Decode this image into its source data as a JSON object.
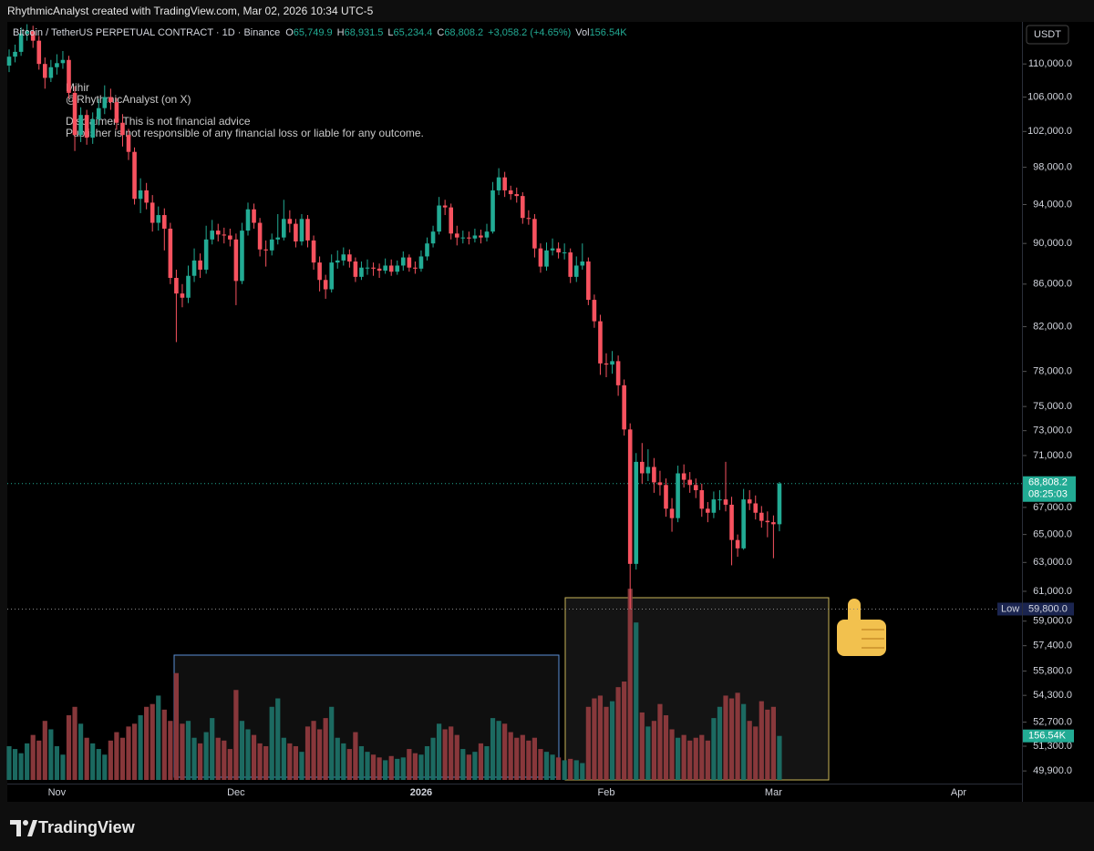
{
  "header": {
    "credit": "RhythmicAnalyst created with TradingView.com, Mar 02, 2026 10:34 UTC-5",
    "currency": "USDT"
  },
  "chart_data": {
    "type": "candlestick",
    "legend": {
      "symbol": "Bitcoin / TetherUS PERPETUAL CONTRACT · 1D · Binance",
      "fields": [
        {
          "prefix": "O",
          "text": "65,749.9"
        },
        {
          "prefix": "H",
          "text": "68,931.5"
        },
        {
          "prefix": "L",
          "text": "65,234.4"
        },
        {
          "prefix": "C",
          "text": "68,808.2"
        },
        {
          "prefix": "Vol",
          "text": "156.54K"
        }
      ],
      "change": "+3,058.2 (+4.65%)"
    },
    "annotations": [
      "Mihir",
      "@RhythmicAnalyst (on X)",
      "Disclaimer: This is not financial advice",
      "Publisher is not responsible of any financial loss or liable for any outcome."
    ],
    "categories": [
      null,
      null,
      null,
      null,
      null,
      null,
      null,
      null,
      "Nov",
      null,
      null,
      null,
      null,
      null,
      null,
      null,
      null,
      null,
      null,
      null,
      null,
      null,
      null,
      null,
      null,
      null,
      null,
      null,
      null,
      null,
      null,
      null,
      null,
      null,
      null,
      null,
      null,
      null,
      "Dec",
      null,
      null,
      null,
      null,
      null,
      null,
      null,
      null,
      null,
      null,
      null,
      null,
      null,
      null,
      null,
      null,
      null,
      null,
      null,
      null,
      null,
      null,
      null,
      null,
      null,
      null,
      null,
      null,
      null,
      null,
      "2026",
      null,
      null,
      null,
      null,
      null,
      null,
      null,
      null,
      null,
      null,
      null,
      null,
      null,
      null,
      null,
      null,
      null,
      null,
      null,
      null,
      null,
      null,
      null,
      null,
      null,
      null,
      null,
      null,
      null,
      null,
      "Feb",
      null,
      null,
      null,
      null,
      null,
      null,
      null,
      null,
      null,
      null,
      null,
      null,
      null,
      null,
      null,
      null,
      null,
      null,
      null,
      null,
      null,
      null,
      null,
      null,
      null,
      null,
      null,
      "Mar",
      null,
      null,
      null,
      null,
      null,
      null,
      null,
      null,
      null,
      null,
      null,
      null,
      null,
      null,
      null,
      null,
      null,
      null,
      null,
      null,
      null,
      null,
      null,
      null,
      null,
      null,
      null,
      null,
      null,
      null,
      "Apr"
    ],
    "open": [
      109800,
      110900,
      111500,
      113800,
      114100,
      112900,
      110000,
      108300,
      109600,
      110100,
      110500,
      106500,
      101600,
      103900,
      101300,
      103400,
      104700,
      106000,
      105400,
      103000,
      101600,
      99700,
      94600,
      95500,
      94200,
      92100,
      92900,
      91500,
      86600,
      85100,
      84700,
      86800,
      88300,
      87400,
      90400,
      91300,
      90900,
      90800,
      90400,
      86300,
      91300,
      93500,
      92100,
      89400,
      89300,
      90400,
      90600,
      92500,
      92000,
      90200,
      92500,
      90300,
      88100,
      86400,
      85500,
      88100,
      88300,
      88900,
      88200,
      86700,
      87600,
      87600,
      87500,
      87300,
      87800,
      87200,
      87800,
      88600,
      87600,
      87500,
      88700,
      90000,
      91200,
      93900,
      93700,
      91000,
      90600,
      90600,
      90500,
      90800,
      90600,
      91200,
      95500,
      96900,
      95500,
      95100,
      94900,
      92600,
      92500,
      89500,
      87700,
      89300,
      89500,
      89100,
      89100,
      86700,
      87800,
      88200,
      84500,
      82500,
      78700,
      78600,
      78900,
      76800,
      73100,
      62900,
      70500,
      69600,
      70100,
      68900,
      68700,
      66900,
      66200,
      69600,
      69100,
      68700,
      68300,
      66900,
      66600,
      67600,
      67600,
      67200,
      64600,
      64000,
      67600,
      67300,
      66600,
      66000,
      65900,
      65749.9,
      null,
      null,
      null,
      null,
      null,
      null,
      null,
      null,
      null,
      null,
      null,
      null,
      null,
      null,
      null,
      null,
      null,
      null,
      null,
      null,
      null,
      null,
      null,
      null,
      null,
      null,
      null,
      null,
      null,
      null
    ],
    "high": [
      111800,
      112400,
      114600,
      115000,
      114800,
      113500,
      110800,
      110500,
      111200,
      111600,
      111000,
      107300,
      104800,
      104500,
      104200,
      105800,
      107400,
      107000,
      105900,
      104000,
      102300,
      100200,
      96800,
      96300,
      95000,
      93800,
      93600,
      92100,
      87400,
      86000,
      87800,
      89500,
      89000,
      91800,
      92400,
      92000,
      91600,
      91500,
      91000,
      92100,
      94200,
      94100,
      92600,
      90300,
      91000,
      93000,
      94500,
      93400,
      92500,
      93000,
      92900,
      90800,
      88700,
      86900,
      88900,
      89300,
      89600,
      89400,
      88600,
      88200,
      88400,
      88100,
      88000,
      88500,
      88400,
      88300,
      89200,
      88900,
      88200,
      89300,
      90600,
      91800,
      94800,
      94500,
      94100,
      91800,
      91300,
      91200,
      91500,
      91400,
      92000,
      96400,
      97900,
      97500,
      96000,
      95800,
      95300,
      93400,
      93000,
      90000,
      90100,
      90500,
      90100,
      90000,
      89500,
      88700,
      90000,
      88600,
      85000,
      83100,
      79600,
      79800,
      79400,
      77300,
      73600,
      71200,
      72000,
      71500,
      70800,
      69800,
      69200,
      67700,
      70200,
      70300,
      69700,
      69200,
      68800,
      67400,
      68200,
      68300,
      70500,
      67800,
      65000,
      68400,
      68300,
      67900,
      67100,
      66700,
      66400,
      68931.5,
      null,
      null,
      null,
      null,
      null,
      null,
      null,
      null,
      null,
      null,
      null,
      null,
      null,
      null,
      null,
      null,
      null,
      null,
      null,
      null,
      null,
      null,
      null,
      null,
      null,
      null,
      null,
      null,
      null,
      null
    ],
    "low": [
      109000,
      110200,
      111000,
      112900,
      112000,
      109300,
      107000,
      107800,
      108700,
      109400,
      105800,
      99800,
      100800,
      100500,
      100600,
      102700,
      104000,
      104500,
      102200,
      100300,
      98800,
      94000,
      93100,
      93500,
      91200,
      91300,
      89300,
      86000,
      80600,
      83800,
      84200,
      86200,
      86600,
      87000,
      89900,
      90200,
      90000,
      89700,
      84000,
      86000,
      90800,
      91500,
      88700,
      87700,
      88800,
      89900,
      90300,
      91100,
      89600,
      89800,
      89600,
      87400,
      85300,
      84600,
      85200,
      87500,
      87800,
      87600,
      86200,
      86400,
      86900,
      86800,
      86600,
      87000,
      86800,
      86900,
      87300,
      87200,
      87000,
      87200,
      88300,
      89600,
      90900,
      92900,
      90400,
      89800,
      90000,
      89900,
      90100,
      90000,
      90200,
      91000,
      95000,
      94800,
      94500,
      94200,
      92000,
      91900,
      88600,
      87100,
      87300,
      88800,
      88500,
      88400,
      86100,
      86200,
      87400,
      84000,
      81900,
      77700,
      77500,
      77800,
      75900,
      72600,
      59800,
      62500,
      68800,
      69000,
      68100,
      67900,
      66300,
      65200,
      65900,
      68500,
      68100,
      67700,
      66300,
      65900,
      66200,
      66800,
      66700,
      62800,
      63400,
      63900,
      66800,
      66100,
      65500,
      64800,
      63300,
      65234.4,
      null,
      null,
      null,
      null,
      null,
      null,
      null,
      null,
      null,
      null,
      null,
      null,
      null,
      null,
      null,
      null,
      null,
      null,
      null,
      null,
      null,
      null,
      null,
      null,
      null,
      null,
      null,
      null,
      null,
      null
    ],
    "close": [
      110900,
      111500,
      113800,
      114100,
      112900,
      110000,
      108300,
      109600,
      110100,
      110500,
      106500,
      101600,
      103900,
      101300,
      103400,
      104700,
      106000,
      105400,
      103000,
      101600,
      99700,
      94600,
      95500,
      94200,
      92100,
      92900,
      91500,
      86600,
      85100,
      84700,
      86800,
      88300,
      87400,
      90400,
      91300,
      90900,
      90800,
      90400,
      86300,
      91300,
      93500,
      92100,
      89400,
      89300,
      90400,
      90600,
      92500,
      92000,
      90200,
      92500,
      90300,
      88100,
      86400,
      85500,
      88100,
      88300,
      88900,
      88200,
      86700,
      87600,
      87600,
      87500,
      87300,
      87800,
      87200,
      87800,
      88600,
      87600,
      87500,
      88700,
      90000,
      91200,
      93900,
      93700,
      91000,
      90600,
      90600,
      90500,
      90800,
      90600,
      91200,
      95500,
      96900,
      95500,
      95100,
      94900,
      92600,
      92500,
      89500,
      87700,
      89300,
      89500,
      89100,
      89100,
      86700,
      87800,
      88200,
      84500,
      82500,
      78700,
      78600,
      78900,
      76800,
      73100,
      62900,
      70500,
      69600,
      70100,
      68900,
      68700,
      66900,
      66200,
      69600,
      69100,
      68700,
      68300,
      66900,
      66600,
      67600,
      67600,
      67200,
      64600,
      64000,
      67600,
      67300,
      66600,
      66000,
      65900,
      65749.9,
      68808.2,
      null,
      null,
      null,
      null,
      null,
      null,
      null,
      null,
      null,
      null,
      null,
      null,
      null,
      null,
      null,
      null,
      null,
      null,
      null,
      null,
      null,
      null,
      null,
      null,
      null,
      null,
      null,
      null,
      null,
      null
    ],
    "volume": [
      120,
      110,
      95,
      130,
      160,
      140,
      210,
      180,
      120,
      90,
      230,
      260,
      200,
      150,
      130,
      110,
      90,
      140,
      170,
      150,
      190,
      200,
      230,
      260,
      270,
      300,
      250,
      210,
      380,
      200,
      210,
      150,
      130,
      170,
      220,
      150,
      140,
      110,
      320,
      210,
      180,
      160,
      130,
      120,
      260,
      290,
      150,
      130,
      120,
      100,
      190,
      210,
      180,
      220,
      260,
      150,
      130,
      110,
      170,
      120,
      100,
      90,
      80,
      70,
      85,
      75,
      80,
      110,
      95,
      90,
      120,
      150,
      200,
      180,
      190,
      160,
      110,
      90,
      100,
      130,
      120,
      220,
      210,
      200,
      170,
      150,
      160,
      140,
      150,
      110,
      100,
      90,
      80,
      70,
      75,
      70,
      60,
      260,
      290,
      300,
      260,
      280,
      330,
      350,
      680,
      560,
      240,
      190,
      210,
      270,
      230,
      180,
      150,
      160,
      140,
      150,
      160,
      140,
      220,
      260,
      300,
      290,
      310,
      270,
      210,
      190,
      280,
      250,
      260,
      156.54,
      null,
      null,
      null,
      null,
      null,
      null,
      null,
      null,
      null,
      null,
      null,
      null,
      null,
      null,
      null,
      null,
      null,
      null,
      null,
      null,
      null,
      null,
      null,
      null,
      null,
      null,
      null,
      null,
      null,
      null
    ],
    "up_color": "#22ab94",
    "down_color": "#f7525f",
    "volume_up_color": "#1d6f66",
    "volume_down_color": "#8f3a3e",
    "log_scale": true,
    "ylim": [
      49200,
      115300
    ],
    "yticks": [
      {
        "value": 110000,
        "label": "110,000.0"
      },
      {
        "value": 106000,
        "label": "106,000.0"
      },
      {
        "value": 102000,
        "label": "102,000.0"
      },
      {
        "value": 98000,
        "label": "98,000.0"
      },
      {
        "value": 94000,
        "label": "94,000.0"
      },
      {
        "value": 90000,
        "label": "90,000.0"
      },
      {
        "value": 86000,
        "label": "86,000.0"
      },
      {
        "value": 82000,
        "label": "82,000.0"
      },
      {
        "value": 78000,
        "label": "78,000.0"
      },
      {
        "value": 75000,
        "label": "75,000.0"
      },
      {
        "value": 73000,
        "label": "73,000.0"
      },
      {
        "value": 71000,
        "label": "71,000.0"
      },
      {
        "value": 67000,
        "label": "67,000.0"
      },
      {
        "value": 65000,
        "label": "65,000.0"
      },
      {
        "value": 63000,
        "label": "63,000.0"
      },
      {
        "value": 61000,
        "label": "61,000.0"
      },
      {
        "value": 59000,
        "label": "59,000.0"
      },
      {
        "value": 57400,
        "label": "57,400.0"
      },
      {
        "value": 55800,
        "label": "55,800.0"
      },
      {
        "value": 54300,
        "label": "54,300.0"
      },
      {
        "value": 52700,
        "label": "52,700.0"
      },
      {
        "value": 51300,
        "label": "51,300.0"
      },
      {
        "value": 49900,
        "label": "49,900.0"
      }
    ],
    "y2lim": [
      0,
      700
    ],
    "last_price": {
      "value": 68808.2,
      "label": "68,808.2",
      "countdown": "08:25:03"
    },
    "low_line": {
      "name": "Low",
      "value": 59800,
      "label": "59,800.0"
    },
    "volume_tag": {
      "value": 156.54,
      "label": "156.54K"
    }
  },
  "footer": {
    "brand": "TradingView"
  }
}
